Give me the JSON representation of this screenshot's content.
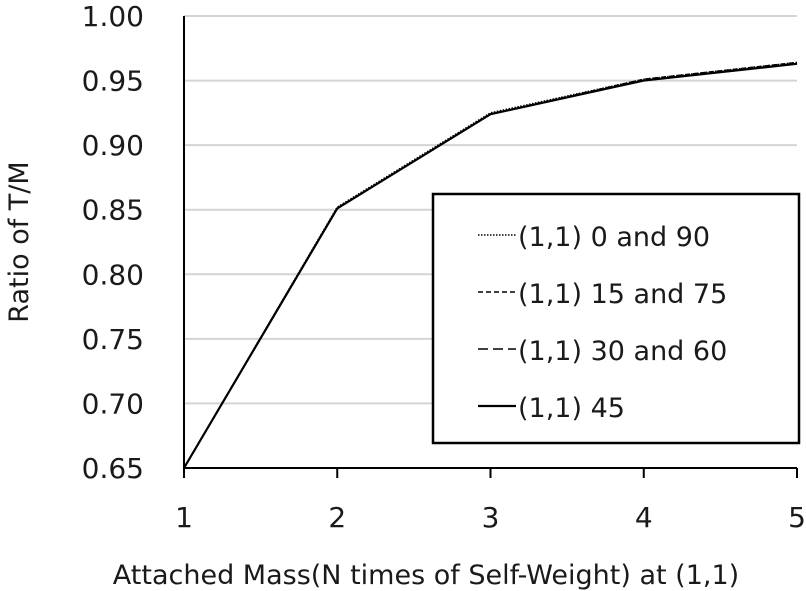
{
  "chart_data": {
    "type": "line",
    "xlabel": "Attached Mass(N times of Self-Weight) at (1,1)",
    "ylabel": "Ratio of  T/M",
    "x": [
      1,
      2,
      3,
      4,
      5
    ],
    "xticks": [
      "1",
      "2",
      "3",
      "4",
      "5"
    ],
    "yticks": [
      "0.65",
      "0.70",
      "0.75",
      "0.80",
      "0.85",
      "0.90",
      "0.95",
      "1.00"
    ],
    "xlim": [
      1,
      5
    ],
    "ylim": [
      0.65,
      1.0
    ],
    "grid": "horizontal",
    "legend_position": "right",
    "series": [
      {
        "name": "(1,1) 0 and 90",
        "values": [
          0.65,
          0.852,
          0.925,
          0.951,
          0.964
        ],
        "dash": "dotted"
      },
      {
        "name": "(1,1) 15 and 75",
        "values": [
          0.65,
          0.851,
          0.924,
          0.951,
          0.964
        ],
        "dash": "short-dash"
      },
      {
        "name": "(1,1) 30 and 60",
        "values": [
          0.65,
          0.851,
          0.924,
          0.95,
          0.963
        ],
        "dash": "long-dash"
      },
      {
        "name": "(1,1) 45",
        "values": [
          0.65,
          0.851,
          0.924,
          0.95,
          0.963
        ],
        "dash": "solid"
      }
    ],
    "colors": {
      "line": "#000000",
      "grid": "#d4d4d4",
      "axis": "#000000"
    }
  }
}
